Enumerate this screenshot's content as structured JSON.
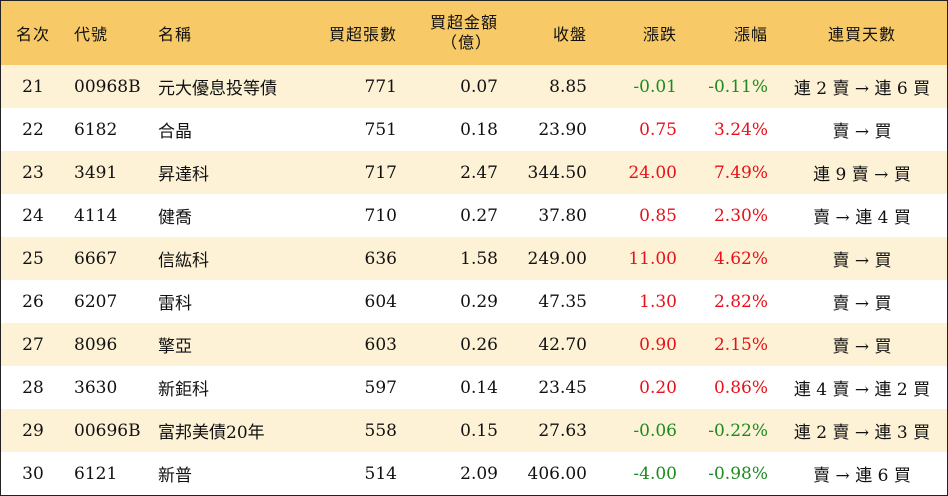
{
  "columns": {
    "rank": "名次",
    "code": "代號",
    "name": "名稱",
    "net_lots": "買超張數",
    "net_amount_line1": "買超金額",
    "net_amount_line2": "（億）",
    "close": "收盤",
    "change": "漲跌",
    "change_pct": "漲幅",
    "streak": "連買天數"
  },
  "colors": {
    "header_bg": "#f7c967",
    "stripe_bg": "#fdf2d5",
    "up": "#e8101a",
    "down": "#1d8a20"
  },
  "rows": [
    {
      "rank": "21",
      "code": "00968B",
      "name": "元大優息投等債",
      "net_lots": "771",
      "net_amount": "0.07",
      "close": "8.85",
      "change": "-0.01",
      "change_pct": "-0.11%",
      "direction": "down",
      "streak": "連 2 賣 → 連 6 買"
    },
    {
      "rank": "22",
      "code": "6182",
      "name": "合晶",
      "net_lots": "751",
      "net_amount": "0.18",
      "close": "23.90",
      "change": "0.75",
      "change_pct": "3.24%",
      "direction": "up",
      "streak": "賣 → 買"
    },
    {
      "rank": "23",
      "code": "3491",
      "name": "昇達科",
      "net_lots": "717",
      "net_amount": "2.47",
      "close": "344.50",
      "change": "24.00",
      "change_pct": "7.49%",
      "direction": "up",
      "streak": "連 9 賣 → 買"
    },
    {
      "rank": "24",
      "code": "4114",
      "name": "健喬",
      "net_lots": "710",
      "net_amount": "0.27",
      "close": "37.80",
      "change": "0.85",
      "change_pct": "2.30%",
      "direction": "up",
      "streak": "賣 → 連 4 買"
    },
    {
      "rank": "25",
      "code": "6667",
      "name": "信紘科",
      "net_lots": "636",
      "net_amount": "1.58",
      "close": "249.00",
      "change": "11.00",
      "change_pct": "4.62%",
      "direction": "up",
      "streak": "賣 → 買"
    },
    {
      "rank": "26",
      "code": "6207",
      "name": "雷科",
      "net_lots": "604",
      "net_amount": "0.29",
      "close": "47.35",
      "change": "1.30",
      "change_pct": "2.82%",
      "direction": "up",
      "streak": "賣 → 買"
    },
    {
      "rank": "27",
      "code": "8096",
      "name": "擎亞",
      "net_lots": "603",
      "net_amount": "0.26",
      "close": "42.70",
      "change": "0.90",
      "change_pct": "2.15%",
      "direction": "up",
      "streak": "賣 → 買"
    },
    {
      "rank": "28",
      "code": "3630",
      "name": "新鉅科",
      "net_lots": "597",
      "net_amount": "0.14",
      "close": "23.45",
      "change": "0.20",
      "change_pct": "0.86%",
      "direction": "up",
      "streak": "連 4 賣 → 連 2 買"
    },
    {
      "rank": "29",
      "code": "00696B",
      "name": "富邦美債20年",
      "net_lots": "558",
      "net_amount": "0.15",
      "close": "27.63",
      "change": "-0.06",
      "change_pct": "-0.22%",
      "direction": "down",
      "streak": "連 2 賣 → 連 3 買"
    },
    {
      "rank": "30",
      "code": "6121",
      "name": "新普",
      "net_lots": "514",
      "net_amount": "2.09",
      "close": "406.00",
      "change": "-4.00",
      "change_pct": "-0.98%",
      "direction": "down",
      "streak": "賣 → 連 6 買"
    }
  ]
}
